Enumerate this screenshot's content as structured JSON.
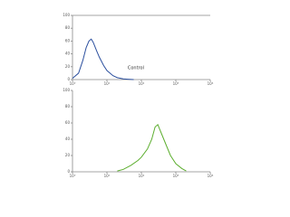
{
  "chart_data": [
    {
      "type": "line",
      "xscale": "log",
      "xlim": [
        1,
        10000
      ],
      "xticks": [
        {
          "value": 1,
          "label": "10⁰"
        },
        {
          "value": 10,
          "label": "10¹"
        },
        {
          "value": 100,
          "label": "10²"
        },
        {
          "value": 1000,
          "label": "10³"
        },
        {
          "value": 10000,
          "label": "10⁴"
        }
      ],
      "ylim": [
        0,
        100
      ],
      "yticks": [
        0,
        20,
        40,
        60,
        80,
        100
      ],
      "annotation": "Control",
      "series": [
        {
          "color": "#2b4f9e",
          "x": [
            1,
            1.5,
            2,
            2.5,
            3,
            3.5,
            4,
            5,
            6,
            8,
            10,
            15,
            20,
            30,
            40,
            60
          ],
          "values": [
            2,
            10,
            30,
            50,
            60,
            63,
            58,
            45,
            35,
            22,
            14,
            6,
            3,
            1,
            0.5,
            0
          ]
        }
      ]
    },
    {
      "type": "line",
      "xscale": "log",
      "xlim": [
        1,
        10000
      ],
      "xticks": [
        {
          "value": 1,
          "label": "10⁰"
        },
        {
          "value": 10,
          "label": "10¹"
        },
        {
          "value": 100,
          "label": "10²"
        },
        {
          "value": 1000,
          "label": "10³"
        },
        {
          "value": 10000,
          "label": "10⁴"
        }
      ],
      "ylim": [
        0,
        100
      ],
      "yticks": [
        0,
        20,
        40,
        60,
        80,
        100
      ],
      "series": [
        {
          "color": "#5cae2e",
          "x": [
            20,
            30,
            50,
            80,
            100,
            150,
            200,
            250,
            300,
            400,
            500,
            700,
            1000,
            1500,
            2000
          ],
          "values": [
            1,
            3,
            8,
            14,
            18,
            28,
            40,
            55,
            58,
            45,
            35,
            20,
            10,
            4,
            1
          ]
        }
      ]
    }
  ]
}
